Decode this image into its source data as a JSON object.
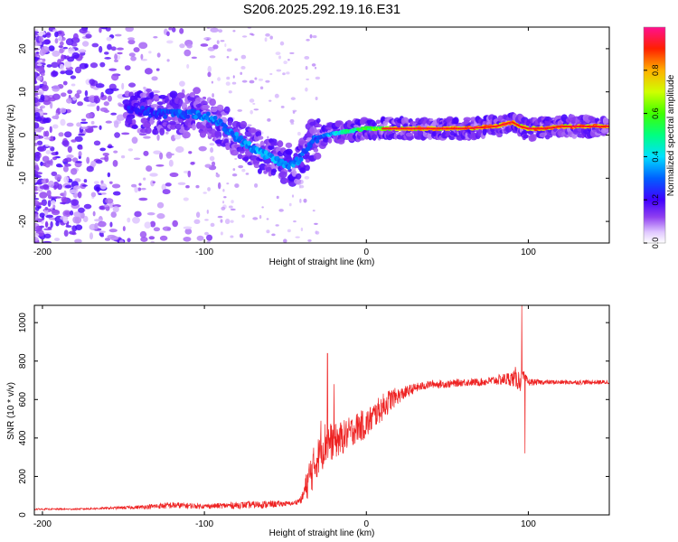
{
  "title": "S206.2025.292.19.16.E31",
  "chart_data": [
    {
      "type": "heatmap",
      "xlabel": "Height of straight line (km)",
      "ylabel": "Frequency (Hz)",
      "xlim": [
        -205,
        150
      ],
      "ylim": [
        -25,
        25
      ],
      "xticks": [
        -200,
        -100,
        0,
        100
      ],
      "yticks": [
        20,
        10,
        0,
        -10,
        -20
      ],
      "colorbar": {
        "label": "Normalized spectral amplitude",
        "range": [
          0.0,
          1.0
        ],
        "ticks": [
          0.0,
          0.2,
          0.4,
          0.6,
          0.8
        ],
        "colors": [
          "#ffffff",
          "#c080ff",
          "#6000e0",
          "#0000ff",
          "#00c8ff",
          "#00ff60",
          "#d0ff00",
          "#ff9000",
          "#ff0000",
          "#ff1080"
        ]
      },
      "ridge": {
        "description_points": [
          [
            -145,
            6
          ],
          [
            -130,
            5
          ],
          [
            -110,
            5
          ],
          [
            -95,
            4
          ],
          [
            -85,
            1
          ],
          [
            -75,
            -2
          ],
          [
            -65,
            -4
          ],
          [
            -55,
            -6
          ],
          [
            -45,
            -7
          ],
          [
            -38,
            -4
          ],
          [
            -33,
            -1
          ],
          [
            -25,
            0
          ],
          [
            -10,
            1
          ],
          [
            0,
            1.5
          ],
          [
            20,
            1.5
          ],
          [
            40,
            1.5
          ],
          [
            60,
            1.5
          ],
          [
            80,
            2
          ],
          [
            90,
            3
          ],
          [
            95,
            2
          ],
          [
            100,
            1.5
          ],
          [
            110,
            1.5
          ],
          [
            120,
            2
          ],
          [
            150,
            2
          ]
        ],
        "amplitude_points": [
          [
            -145,
            0.25
          ],
          [
            -120,
            0.3
          ],
          [
            -100,
            0.35
          ],
          [
            -80,
            0.35
          ],
          [
            -60,
            0.4
          ],
          [
            -45,
            0.35
          ],
          [
            -30,
            0.3
          ],
          [
            -15,
            0.5
          ],
          [
            0,
            0.6
          ],
          [
            20,
            0.8
          ],
          [
            60,
            0.85
          ],
          [
            100,
            0.85
          ],
          [
            150,
            0.85
          ]
        ]
      }
    },
    {
      "type": "line",
      "xlabel": "Height of straight line (km)",
      "ylabel": "SNR (10 * v/v)",
      "xlim": [
        -205,
        150
      ],
      "ylim": [
        0,
        1090
      ],
      "xticks": [
        -200,
        -100,
        0,
        100
      ],
      "yticks": [
        0,
        200,
        400,
        600,
        800,
        1000
      ],
      "color": "#ee2222",
      "x": [
        -205,
        -180,
        -160,
        -140,
        -120,
        -100,
        -80,
        -60,
        -45,
        -40,
        -35,
        -30,
        -25,
        -20,
        -15,
        -10,
        -5,
        0,
        5,
        10,
        15,
        20,
        30,
        40,
        50,
        60,
        70,
        80,
        90,
        95,
        97,
        100,
        105,
        110,
        120,
        130,
        140,
        150
      ],
      "y": [
        30,
        30,
        35,
        40,
        50,
        45,
        50,
        55,
        60,
        80,
        200,
        300,
        380,
        380,
        400,
        430,
        460,
        470,
        520,
        560,
        600,
        620,
        660,
        680,
        680,
        690,
        690,
        700,
        710,
        700,
        720,
        690,
        690,
        690,
        690,
        690,
        690,
        690
      ],
      "noise": [
        4,
        4,
        6,
        10,
        18,
        12,
        18,
        20,
        10,
        20,
        110,
        100,
        120,
        90,
        90,
        80,
        80,
        80,
        70,
        70,
        60,
        40,
        25,
        20,
        20,
        20,
        20,
        25,
        40,
        60,
        30,
        20,
        15,
        12,
        12,
        12,
        12,
        12
      ],
      "spikes": [
        [
          -24,
          840
        ],
        [
          -28,
          490
        ],
        [
          -20,
          680
        ],
        [
          96,
          1090
        ],
        [
          98,
          320
        ],
        [
          92,
          770
        ]
      ]
    }
  ]
}
